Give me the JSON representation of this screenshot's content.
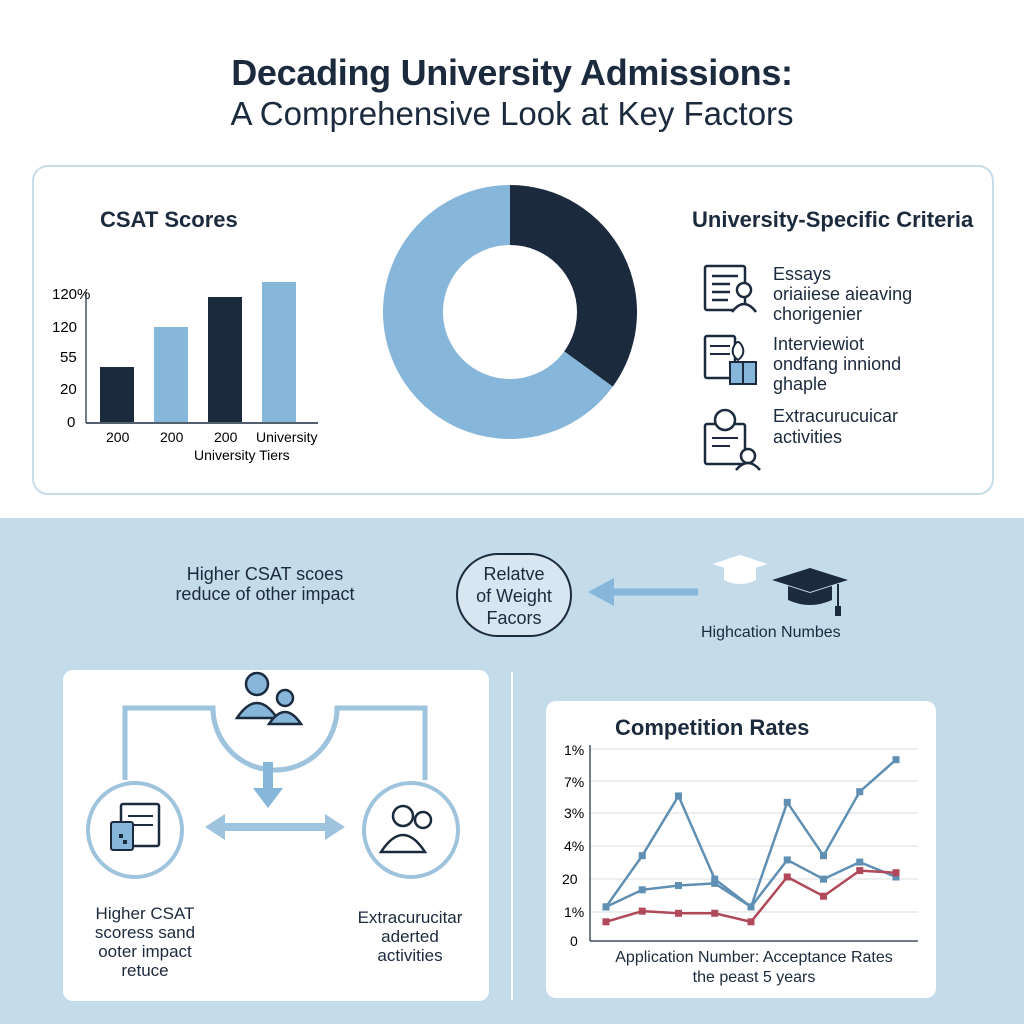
{
  "header": {
    "title": "Decading University Admissions:",
    "subtitle": "A Comprehensive Look at Key Factors"
  },
  "csat": {
    "title": "CSAT Scores",
    "y_ticks": [
      "120%",
      "120",
      "55",
      "20",
      "0"
    ],
    "x_labels": [
      "200",
      "200",
      "200",
      "University"
    ],
    "x_axis_label": "University Tiers"
  },
  "criteria": {
    "title": "University-Specific Criteria",
    "items": [
      {
        "icon": "essay-icon",
        "lines": [
          "Essays",
          "oriaiiese aieaving",
          "chorigenier"
        ]
      },
      {
        "icon": "interview-icon",
        "lines": [
          "Interviewiot",
          "ondfang inniond",
          "ghaple"
        ]
      },
      {
        "icon": "activities-icon",
        "lines": [
          "Extracurucuicar",
          "activities"
        ]
      }
    ]
  },
  "middle": {
    "left_text": [
      "Higher CSAT scoes",
      "reduce of other impact"
    ],
    "bubble": [
      "Relatve",
      "of Weight",
      "Facors"
    ],
    "right_caption": "Highcation Numbes"
  },
  "flow": {
    "left_caption": [
      "Higher CSAT",
      "scoress sand",
      "ooter impact",
      "retuce"
    ],
    "right_caption": [
      "Extracurucitar",
      "aderted",
      "activities"
    ]
  },
  "competition": {
    "title": "Competition Rates",
    "caption": [
      "Application Number: Acceptance Rates",
      "the peast 5 years"
    ]
  },
  "colors": {
    "navy": "#1c2a3d",
    "light_blue": "#86b6d9",
    "mid_blue": "#5f8fb3",
    "band": "#c4dbea",
    "red": "#b04a5a"
  },
  "chart_data": [
    {
      "type": "bar",
      "title": "CSAT Scores",
      "categories": [
        "200",
        "200",
        "200",
        "University"
      ],
      "values": [
        55,
        95,
        125,
        140
      ],
      "xlabel": "University Tiers",
      "ylabel": "",
      "ytick_labels": [
        "0",
        "20",
        "55",
        "120",
        "120%"
      ],
      "bar_colors": [
        "#1c2a3d",
        "#86b6d9",
        "#1c2a3d",
        "#86b6d9"
      ]
    },
    {
      "type": "pie",
      "donut": true,
      "values": [
        35,
        65
      ],
      "colors": [
        "#1c2a3d",
        "#86b6d9"
      ]
    },
    {
      "type": "line",
      "title": "Competition Rates",
      "x": [
        1,
        2,
        3,
        4,
        5,
        6,
        7,
        8,
        9
      ],
      "ytick_labels": [
        "0",
        "1%",
        "20",
        "4%",
        "3%",
        "7%",
        "1%"
      ],
      "xlabel": "Application Number: Acceptance Rates",
      "series": [
        {
          "values": [
            1.6,
            4.0,
            6.8,
            2.9,
            1.6,
            6.5,
            4.0,
            7.0,
            8.5
          ],
          "color": "#5f8fb3"
        },
        {
          "values": [
            1.6,
            2.4,
            2.6,
            2.7,
            1.6,
            3.8,
            2.9,
            3.7,
            3.0
          ],
          "color": "#5f8fb3"
        },
        {
          "values": [
            0.9,
            1.4,
            1.3,
            1.3,
            0.9,
            3.0,
            2.1,
            3.3,
            3.2
          ],
          "color": "#b04a5a"
        }
      ]
    }
  ]
}
